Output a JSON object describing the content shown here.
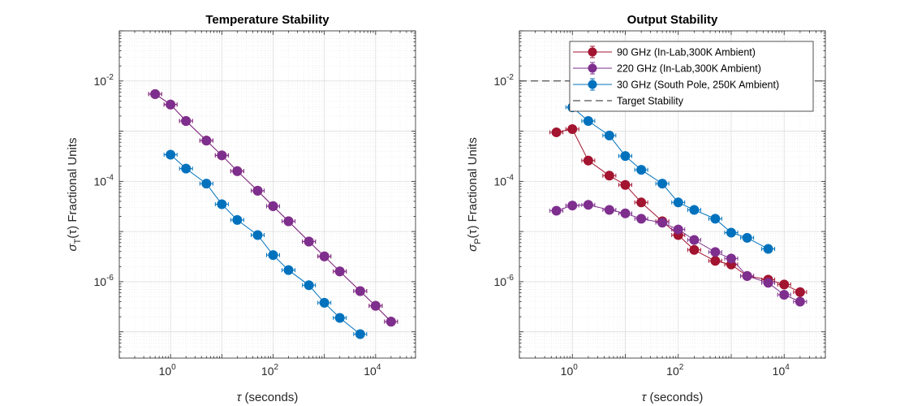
{
  "chart_data": [
    {
      "type": "scatter",
      "title": "Temperature Stability",
      "xlabel": "(seconds)",
      "xlabel_symbol": "τ",
      "ylabel": "(τ) Fractional Units",
      "ylabel_symbol": "σ",
      "ylabel_subscript": "T",
      "xscale": "log",
      "yscale": "log",
      "xlim": [
        0.1,
        60000
      ],
      "ylim": [
        3e-08,
        0.1
      ],
      "xticks": [
        {
          "base": "10",
          "exp": "0"
        },
        {
          "base": "10",
          "exp": "2"
        },
        {
          "base": "10",
          "exp": "4"
        }
      ],
      "yticks": [
        {
          "base": "10",
          "exp": "-6"
        },
        {
          "base": "10",
          "exp": "-4"
        },
        {
          "base": "10",
          "exp": "-2"
        }
      ],
      "xtick_values": [
        1,
        100,
        10000
      ],
      "ytick_values": [
        1e-06,
        0.0001,
        0.01
      ],
      "grid": true,
      "series": [
        {
          "color": "#A2142F",
          "x": [
            0.5,
            1,
            2,
            5,
            10,
            20,
            50,
            100,
            200,
            500,
            1000,
            2000,
            5000,
            10000,
            20000
          ],
          "y": [
            0.0055,
            0.0034,
            0.0016,
            0.00065,
            0.00033,
            0.00016,
            6.5e-05,
            3.2e-05,
            1.6e-05,
            6.3e-06,
            3.2e-06,
            1.6e-06,
            6.5e-07,
            3.3e-07,
            1.6e-07
          ]
        },
        {
          "color": "#7E2F8E",
          "x": [
            0.5,
            1,
            2,
            5,
            10,
            20,
            50,
            100,
            200,
            500,
            1000,
            2000,
            5000,
            10000,
            20000
          ],
          "y": [
            0.0055,
            0.0034,
            0.0016,
            0.00065,
            0.00033,
            0.00016,
            6.5e-05,
            3.2e-05,
            1.6e-05,
            6.3e-06,
            3.2e-06,
            1.6e-06,
            6.5e-07,
            3.3e-07,
            1.6e-07
          ]
        },
        {
          "color": "#0072BD",
          "x": [
            1,
            2,
            5,
            10,
            20,
            50,
            100,
            200,
            500,
            1000,
            2000,
            5000
          ],
          "y": [
            0.00034,
            0.00018,
            9e-05,
            3.5e-05,
            1.7e-05,
            8.5e-06,
            3.4e-06,
            1.7e-06,
            8.5e-07,
            3.8e-07,
            1.9e-07,
            9e-08
          ]
        }
      ]
    },
    {
      "type": "scatter",
      "title": "Output Stability",
      "xlabel": "(seconds)",
      "xlabel_symbol": "τ",
      "ylabel": "(τ) Fractional Units",
      "ylabel_symbol": "σ",
      "ylabel_subscript": "P",
      "xscale": "log",
      "yscale": "log",
      "xlim": [
        0.1,
        60000
      ],
      "ylim": [
        3e-08,
        0.1
      ],
      "xticks": [
        {
          "base": "10",
          "exp": "0"
        },
        {
          "base": "10",
          "exp": "2"
        },
        {
          "base": "10",
          "exp": "4"
        }
      ],
      "yticks": [
        {
          "base": "10",
          "exp": "-6"
        },
        {
          "base": "10",
          "exp": "-4"
        },
        {
          "base": "10",
          "exp": "-2"
        }
      ],
      "xtick_values": [
        1,
        100,
        10000
      ],
      "ytick_values": [
        1e-06,
        0.0001,
        0.01
      ],
      "grid": true,
      "legend_position": "top-right",
      "target_stability": 0.01,
      "target_label": "Target Stability",
      "series": [
        {
          "name": "90 GHz (In-Lab,300K Ambient)",
          "color": "#A2142F",
          "x": [
            0.5,
            1,
            2,
            5,
            10,
            20,
            50,
            100,
            200,
            500,
            1000,
            2000,
            5000,
            10000,
            20000
          ],
          "y": [
            0.00095,
            0.0011,
            0.00026,
            0.00013,
            8.5e-05,
            3.8e-05,
            1.6e-05,
            8.5e-06,
            4.3e-06,
            2.6e-06,
            2.2e-06,
            1.3e-06,
            1.1e-06,
            8.8e-07,
            6.2e-07
          ]
        },
        {
          "name": "220 GHz (In-Lab,300K Ambient)",
          "color": "#7E2F8E",
          "x": [
            0.5,
            1,
            2,
            5,
            10,
            20,
            50,
            100,
            200,
            500,
            1000,
            2000,
            5000,
            10000,
            20000
          ],
          "y": [
            2.6e-05,
            3.3e-05,
            3.4e-05,
            2.7e-05,
            2.3e-05,
            1.8e-05,
            1.5e-05,
            1.1e-05,
            6.8e-06,
            3.9e-06,
            2.9e-06,
            1.3e-06,
            9.5e-07,
            5.5e-07,
            4e-07
          ]
        },
        {
          "name": "30 GHz (South Pole, 250K Ambient)",
          "color": "#0072BD",
          "x": [
            1,
            2,
            5,
            10,
            20,
            50,
            100,
            200,
            500,
            1000,
            2000,
            5000
          ],
          "y": [
            0.003,
            0.0016,
            0.00082,
            0.00032,
            0.00017,
            9e-05,
            3.8e-05,
            2.7e-05,
            1.8e-05,
            9.5e-06,
            7.5e-06,
            4.5e-06
          ]
        }
      ]
    }
  ]
}
